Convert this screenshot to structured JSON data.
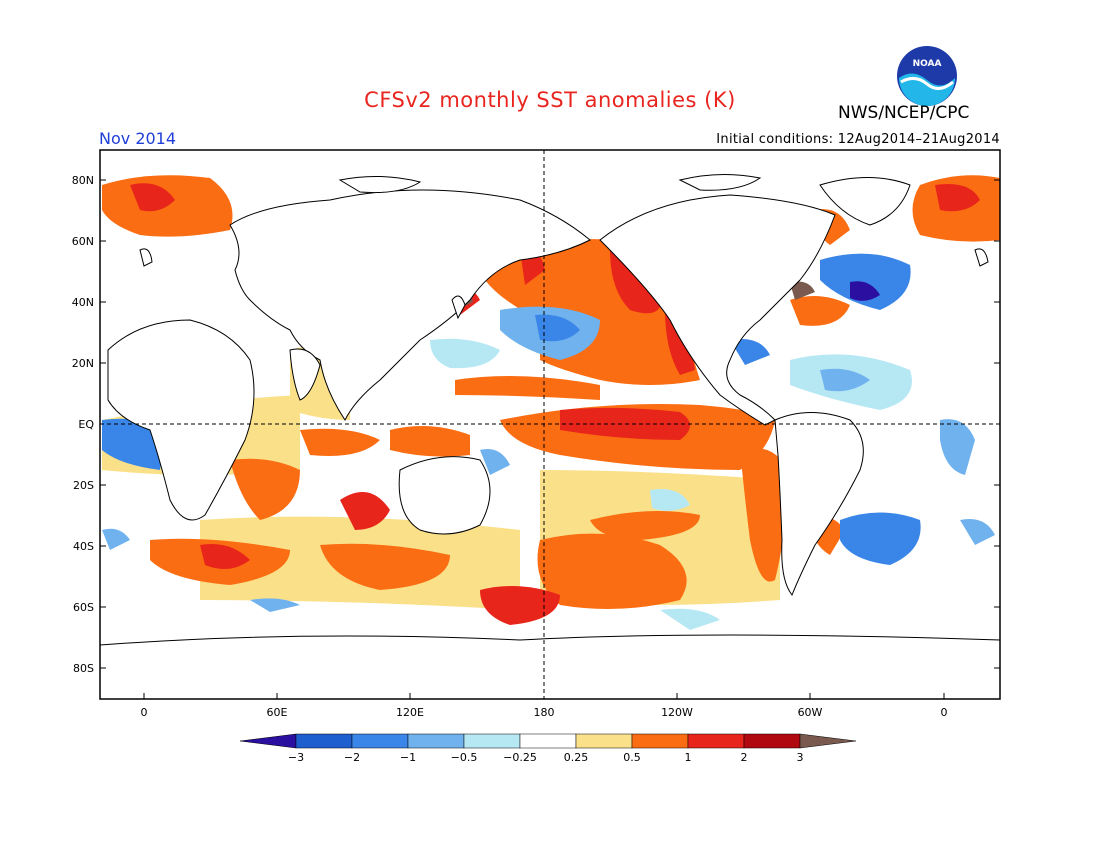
{
  "title": "CFSv2 monthly SST anomalies (K)",
  "agency": "NWS/NCEP/CPC",
  "logo_text": "NOAA",
  "valid_month": "Nov 2014",
  "initial_conditions": "Initial conditions: 12Aug2014–21Aug2014",
  "lat_labels": [
    "80N",
    "60N",
    "40N",
    "20N",
    "EQ",
    "20S",
    "40S",
    "60S",
    "80S"
  ],
  "lon_labels": [
    "0",
    "60E",
    "120E",
    "180",
    "120W",
    "60W",
    "0"
  ],
  "colorbar": {
    "labels": [
      "−3",
      "−2",
      "−1",
      "−0.5",
      "−0.25",
      "0.25",
      "0.5",
      "1",
      "2",
      "3"
    ],
    "colors": [
      "#2a0fa0",
      "#1e5fd0",
      "#3a86e8",
      "#6fb2ee",
      "#b6e8f4",
      "#ffffff",
      "#fbe08a",
      "#fb6d12",
      "#e8251a",
      "#b0090f",
      "#7a5a4e"
    ]
  },
  "colors": {
    "title": "#e8251f",
    "month": "#1f3fd8"
  }
}
